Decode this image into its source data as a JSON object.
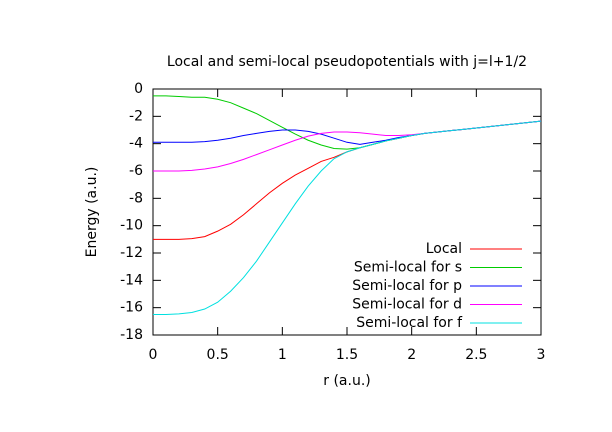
{
  "chart_data": {
    "type": "line",
    "title": "Local and semi-local pseudopotentials with j=l+1/2",
    "x_label": "r (a.u.)",
    "y_label": "Energy (a.u.)",
    "x": [
      0,
      0.1,
      0.2,
      0.3,
      0.4,
      0.5,
      0.6,
      0.7,
      0.8,
      0.9,
      1,
      1.1,
      1.2,
      1.3,
      1.4,
      1.5,
      1.6,
      1.7,
      1.8,
      1.9,
      2,
      2.1,
      2.2,
      2.3,
      2.4,
      2.5,
      2.6,
      2.7,
      2.8,
      2.9,
      3
    ],
    "series": [
      {
        "name": "Local",
        "color": "#ff0000",
        "values": [
          -11,
          -11,
          -11,
          -10.95,
          -10.8,
          -10.4,
          -9.9,
          -9.2,
          -8.4,
          -7.6,
          -6.9,
          -6.3,
          -5.8,
          -5.3,
          -5.0,
          -4.6,
          -4.3,
          -4.05,
          -3.8,
          -3.6,
          -3.4,
          -3.25,
          -3.15,
          -3.05,
          -2.95,
          -2.85,
          -2.75,
          -2.65,
          -2.55,
          -2.45,
          -2.35
        ]
      },
      {
        "name": "Semi-local for s",
        "color": "#00cc00",
        "values": [
          -0.5,
          -0.5,
          -0.55,
          -0.6,
          -0.6,
          -0.75,
          -1.0,
          -1.4,
          -1.8,
          -2.3,
          -2.8,
          -3.3,
          -3.75,
          -4.1,
          -4.35,
          -4.4,
          -4.3,
          -4.05,
          -3.8,
          -3.6,
          -3.4,
          -3.25,
          -3.15,
          -3.05,
          -2.95,
          -2.85,
          -2.75,
          -2.65,
          -2.55,
          -2.45,
          -2.35
        ]
      },
      {
        "name": "Semi-local for p",
        "color": "#0000ff",
        "values": [
          -3.9,
          -3.9,
          -3.9,
          -3.9,
          -3.85,
          -3.75,
          -3.6,
          -3.4,
          -3.25,
          -3.1,
          -3.0,
          -3.0,
          -3.1,
          -3.3,
          -3.6,
          -3.9,
          -4.05,
          -3.9,
          -3.75,
          -3.55,
          -3.4,
          -3.25,
          -3.15,
          -3.05,
          -2.95,
          -2.85,
          -2.75,
          -2.65,
          -2.55,
          -2.45,
          -2.35
        ]
      },
      {
        "name": "Semi-local for d",
        "color": "#ff00ff",
        "values": [
          -6,
          -6,
          -6,
          -5.95,
          -5.85,
          -5.7,
          -5.45,
          -5.15,
          -4.8,
          -4.45,
          -4.1,
          -3.75,
          -3.45,
          -3.25,
          -3.15,
          -3.15,
          -3.2,
          -3.3,
          -3.4,
          -3.4,
          -3.35,
          -3.25,
          -3.15,
          -3.05,
          -2.95,
          -2.85,
          -2.75,
          -2.65,
          -2.55,
          -2.45,
          -2.35
        ]
      },
      {
        "name": "Semi-local for f",
        "color": "#00e0e0",
        "values": [
          -16.5,
          -16.5,
          -16.45,
          -16.35,
          -16.1,
          -15.6,
          -14.8,
          -13.8,
          -12.6,
          -11.2,
          -9.8,
          -8.4,
          -7.1,
          -6.0,
          -5.1,
          -4.6,
          -4.3,
          -4.05,
          -3.8,
          -3.6,
          -3.4,
          -3.25,
          -3.15,
          -3.05,
          -2.95,
          -2.85,
          -2.75,
          -2.65,
          -2.55,
          -2.45,
          -2.35
        ]
      }
    ],
    "xlim": [
      0,
      3
    ],
    "xticks": [
      0,
      0.5,
      1,
      1.5,
      2,
      2.5,
      3
    ],
    "ylim": [
      -18,
      0
    ],
    "yticks": [
      0,
      -2,
      -4,
      -6,
      -8,
      -10,
      -12,
      -14,
      -16,
      -18
    ],
    "grid": false,
    "legend": "bottom right"
  }
}
